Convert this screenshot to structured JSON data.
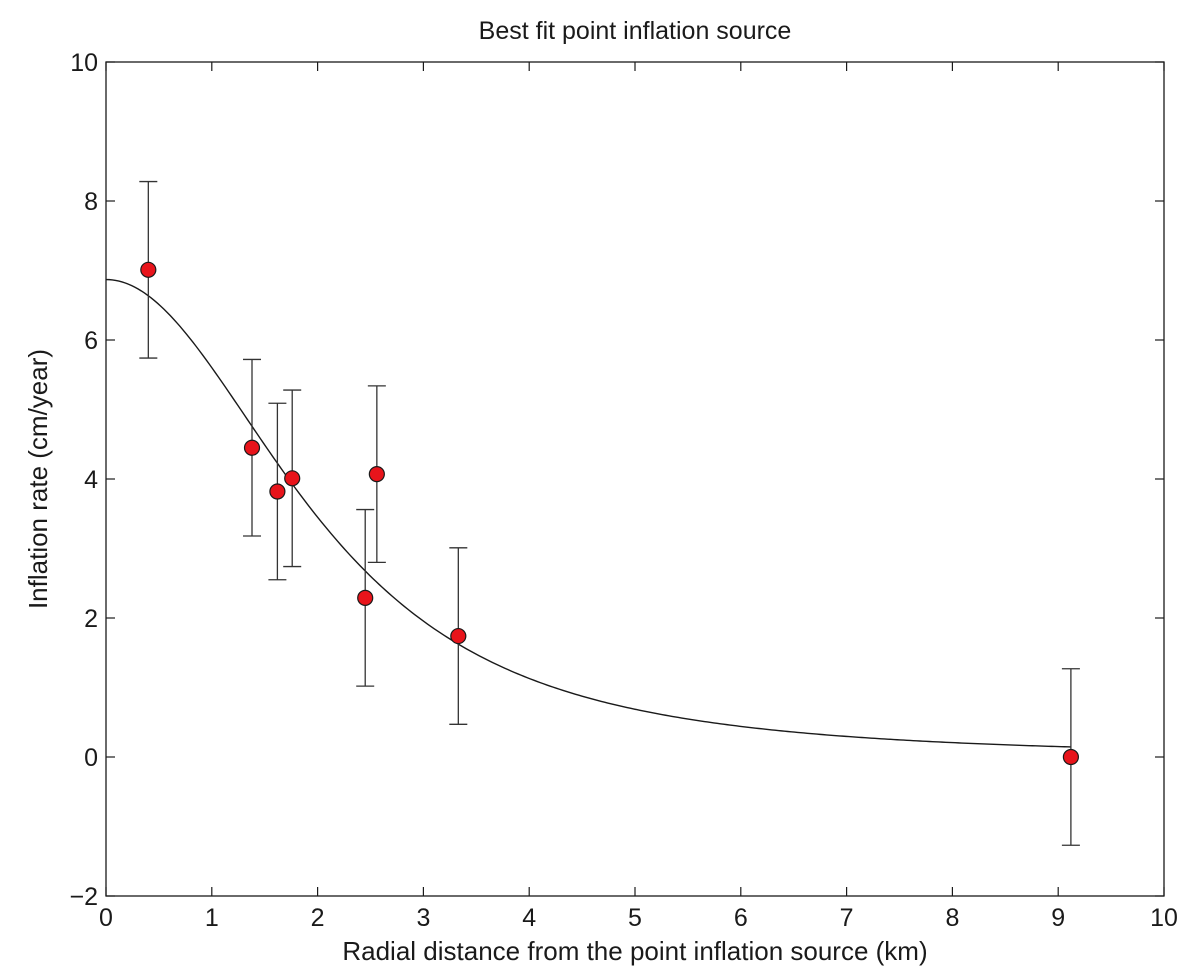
{
  "chart_data": {
    "type": "scatter",
    "title": "Best fit point inflation source",
    "xlabel": "Radial distance from the point inflation source (km)",
    "ylabel": "Inflation rate (cm/year)",
    "xlim": [
      0,
      10
    ],
    "ylim": [
      -2,
      10
    ],
    "xticks": [
      0,
      1,
      2,
      3,
      4,
      5,
      6,
      7,
      8,
      9,
      10
    ],
    "yticks": [
      -2,
      0,
      2,
      4,
      6,
      8,
      10
    ],
    "xtick_labels": [
      "0",
      "1",
      "2",
      "3",
      "4",
      "5",
      "6",
      "7",
      "8",
      "9",
      "10"
    ],
    "ytick_labels": [
      "−2",
      "0",
      "2",
      "4",
      "6",
      "8",
      "10"
    ],
    "grid": false,
    "series": [
      {
        "kind": "points_with_error_bars",
        "marker_color": "#e8141b",
        "points": [
          {
            "x": 0.4,
            "y": 7.01,
            "err": 1.27
          },
          {
            "x": 1.38,
            "y": 4.45,
            "err": 1.27
          },
          {
            "x": 1.62,
            "y": 3.82,
            "err": 1.27
          },
          {
            "x": 1.76,
            "y": 4.01,
            "err": 1.27
          },
          {
            "x": 2.45,
            "y": 2.29,
            "err": 1.27
          },
          {
            "x": 2.56,
            "y": 4.07,
            "err": 1.27
          },
          {
            "x": 3.33,
            "y": 1.74,
            "err": 1.27
          },
          {
            "x": 9.12,
            "y": 0.0,
            "err": 1.27
          }
        ]
      },
      {
        "kind": "fit_curve",
        "line_color": "#1a1a1a",
        "x_range": [
          0,
          9.12
        ],
        "peak": 6.87,
        "depth": 2.62
      }
    ]
  }
}
